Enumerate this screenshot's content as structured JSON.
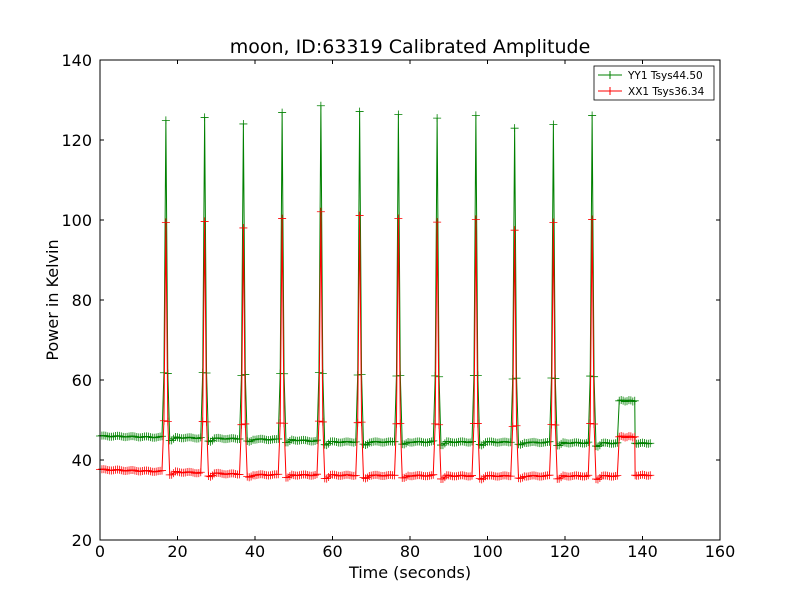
{
  "chart_data": {
    "type": "line",
    "title": "moon, ID:63319 Calibrated Amplitude",
    "xlabel": "Time (seconds)",
    "ylabel": "Power in Kelvin",
    "xlim": [
      0,
      160
    ],
    "ylim": [
      20,
      140
    ],
    "xticks": [
      0,
      20,
      40,
      60,
      80,
      100,
      120,
      140,
      160
    ],
    "yticks": [
      20,
      40,
      60,
      80,
      100,
      120,
      140
    ],
    "grid": false,
    "legend_position": "top-right",
    "marker": "+",
    "peak_times": [
      17,
      27,
      37,
      47,
      57,
      67,
      77,
      87,
      97,
      107,
      117,
      127
    ],
    "series": [
      {
        "name": "YY1 Tsys44.50",
        "color": "#008000",
        "baseline_segments": [
          [
            0,
            46.0
          ],
          [
            10,
            45.8
          ],
          [
            50,
            45.0
          ],
          [
            60,
            44.5
          ],
          [
            100,
            44.5
          ],
          [
            130,
            44.2
          ]
        ],
        "peak_values": [
          125,
          125.5,
          124,
          127,
          128.5,
          127,
          126.5,
          125.5,
          126,
          123,
          124,
          126
        ],
        "step": {
          "start": 134,
          "end": 138,
          "level": 54.8
        },
        "tail": {
          "start": 138,
          "end": 142,
          "level": 44.2
        }
      },
      {
        "name": "XX1 Tsys36.34",
        "color": "#ff0000",
        "baseline_segments": [
          [
            0,
            37.6
          ],
          [
            10,
            37.3
          ],
          [
            20,
            37.0
          ],
          [
            40,
            36.3
          ],
          [
            60,
            36.2
          ],
          [
            100,
            36.0
          ],
          [
            130,
            36.0
          ]
        ],
        "peak_values": [
          99.5,
          99.5,
          98,
          100.5,
          102,
          101,
          100.5,
          99.5,
          100,
          97.5,
          99.5,
          100
        ],
        "step": {
          "start": 134,
          "end": 138,
          "level": 45.8
        },
        "tail": {
          "start": 138,
          "end": 142,
          "level": 36.2
        }
      }
    ]
  }
}
